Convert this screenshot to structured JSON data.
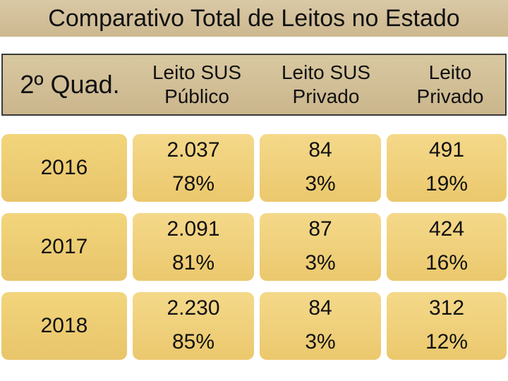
{
  "title": "Comparativo Total de Leitos no Estado",
  "chart_data": {
    "type": "table",
    "corner_label": "2º Quad.",
    "columns": [
      [
        "Leito SUS",
        "Público"
      ],
      [
        "Leito SUS",
        "Privado"
      ],
      [
        "Leito",
        "Privado"
      ]
    ],
    "rows": [
      {
        "year": "2016",
        "values": [
          "2.037",
          "84",
          "491"
        ],
        "percents": [
          "78%",
          "3%",
          "19%"
        ]
      },
      {
        "year": "2017",
        "values": [
          "2.091",
          "87",
          "424"
        ],
        "percents": [
          "81%",
          "3%",
          "16%"
        ]
      },
      {
        "year": "2018",
        "values": [
          "2.230",
          "84",
          "312"
        ],
        "percents": [
          "85%",
          "3%",
          "12%"
        ]
      }
    ]
  },
  "colors": {
    "header_bg": "#cdb88f",
    "cell_bg": "#f0d27a",
    "text": "#111111"
  }
}
